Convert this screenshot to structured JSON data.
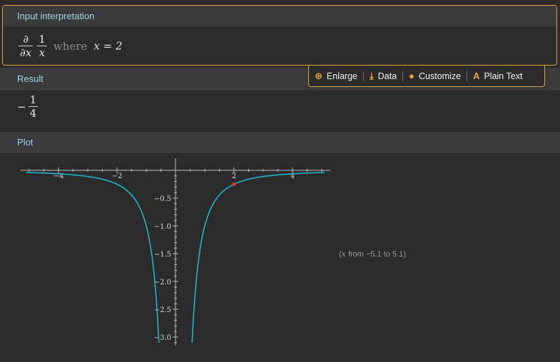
{
  "input_pod": {
    "title": "Input interpretation",
    "partial_num": "∂",
    "partial_den": "∂x",
    "frac_num": "1",
    "frac_den": "x",
    "where_word": "where",
    "condition": "x = 2"
  },
  "toolbar": {
    "enlarge": "Enlarge",
    "data": "Data",
    "customize": "Customize",
    "plain_text": "Plain Text",
    "accent_color": "#f0a33a"
  },
  "result_pod": {
    "title": "Result",
    "sign": "−",
    "numerator": "1",
    "denominator": "4"
  },
  "plot_pod": {
    "title": "Plot",
    "range_var": "x",
    "range_text": "from −5.1 to 5.1",
    "curve_color": "#1fb3cc",
    "point_color": "#e03030"
  },
  "chart_data": {
    "type": "line",
    "title": "",
    "xlabel": "",
    "ylabel": "",
    "function": "-1/x^2",
    "xlim": [
      -5.1,
      5.1
    ],
    "ylim": [
      -3.1,
      0
    ],
    "x_ticks": [
      -4,
      -2,
      2,
      4
    ],
    "x_tick_labels": [
      "−4",
      "−2",
      "2",
      "4"
    ],
    "y_ticks": [
      -0.5,
      -1.0,
      -1.5,
      -2.0,
      -2.5,
      -3.0
    ],
    "y_tick_labels": [
      "−0.5",
      "−1.0",
      "−1.5",
      "−2.0",
      "−2.5",
      "−3.0"
    ],
    "highlighted_point": {
      "x": 2,
      "y": -0.25
    },
    "grid": false
  }
}
